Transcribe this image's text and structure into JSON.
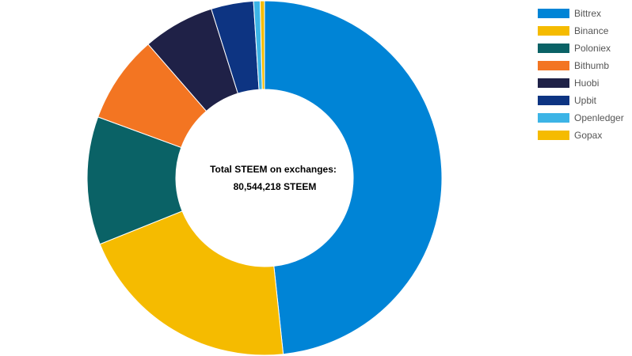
{
  "chart_data": {
    "type": "pie",
    "donut": true,
    "center_text": {
      "line1": "Total STEEM on exchanges:",
      "line2": "80,544,218 STEEM"
    },
    "legend_position": "top-right",
    "categories": [
      "Bittrex",
      "Binance",
      "Poloniex",
      "Bithumb",
      "Huobi",
      "Upbit",
      "Openledger",
      "Gopax"
    ],
    "values": [
      48.8,
      20.8,
      11.8,
      8.1,
      6.6,
      3.9,
      0.6,
      0.4
    ],
    "colors": [
      "#0084d6",
      "#f5bb00",
      "#0a6266",
      "#f37522",
      "#1f2147",
      "#0d3482",
      "#3cb4e6",
      "#f5bb00"
    ]
  }
}
